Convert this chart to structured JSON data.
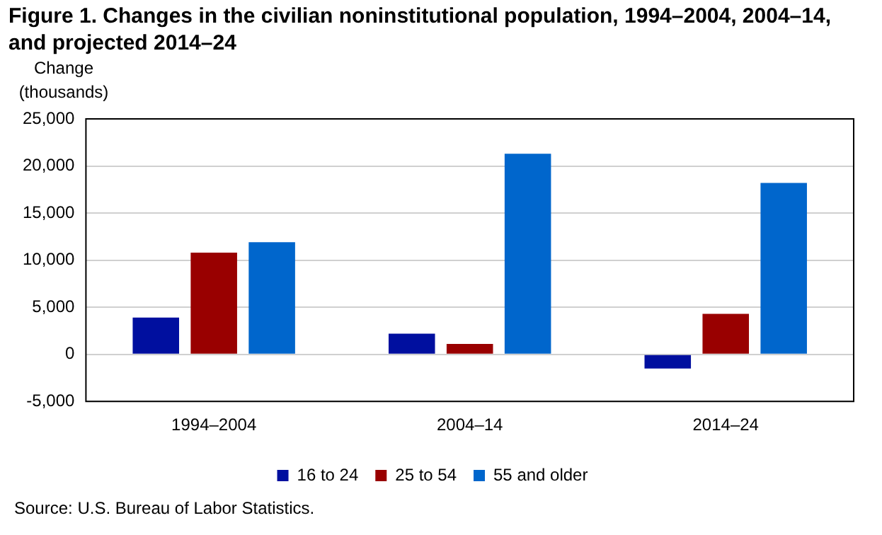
{
  "chart_data": {
    "type": "bar",
    "title": "Figure 1. Changes in the civilian noninstitutional population, 1994–2004, 2004–14, and projected 2014–24",
    "ylabel": "Change (thousands)",
    "categories": [
      "1994–2004",
      "2004–14",
      "2014–24"
    ],
    "series": [
      {
        "name": "16 to 24",
        "color": "#000f9f",
        "values": [
          3900,
          2200,
          -1500
        ]
      },
      {
        "name": "25 to 54",
        "color": "#990000",
        "values": [
          10800,
          1100,
          4300
        ]
      },
      {
        "name": "55 and older",
        "color": "#0066cc",
        "values": [
          11900,
          21300,
          18200
        ]
      }
    ],
    "ylim": [
      -5000,
      25000
    ],
    "yticks": [
      {
        "value": -5000,
        "label": "-5,000"
      },
      0,
      {
        "value": 5000,
        "label": "5,000"
      },
      {
        "value": 10000,
        "label": "10,000"
      },
      {
        "value": 15000,
        "label": "15,000"
      },
      {
        "value": 20000,
        "label": "20,000"
      },
      {
        "value": 25000,
        "label": "25,000"
      }
    ],
    "grid": "y",
    "legend": "bottom",
    "annotations": [
      "Source: U.S. Bureau of Labor Statistics."
    ]
  }
}
